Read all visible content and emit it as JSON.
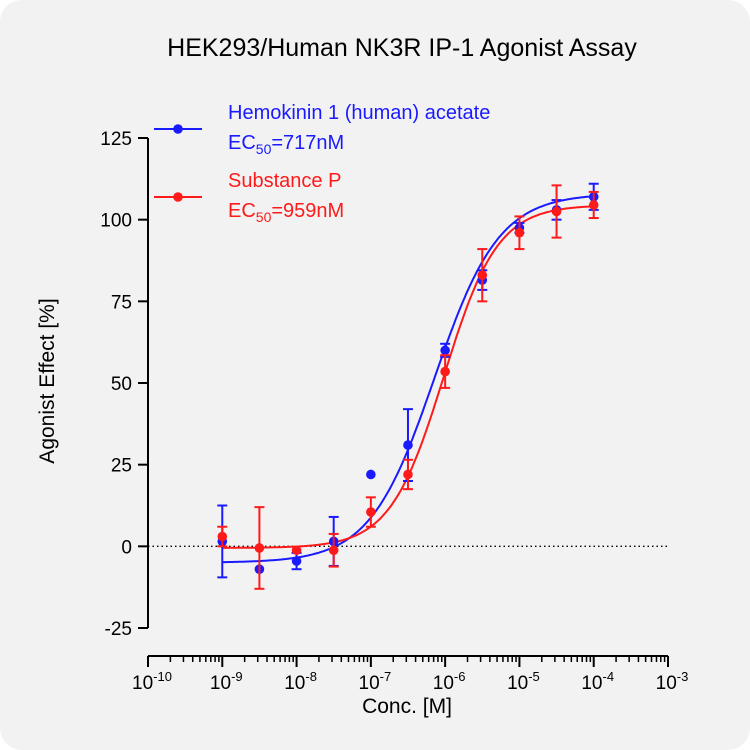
{
  "chart_data": {
    "type": "scatter",
    "title": "HEK293/Human NK3R IP-1 Agonist Assay",
    "xlabel": "Conc. [M]",
    "ylabel": "Agonist Effect [%]",
    "x_scale": "log",
    "xlim": [
      1e-10,
      0.001
    ],
    "ylim": [
      -25,
      125
    ],
    "y_ticks": [
      -25,
      0,
      25,
      50,
      75,
      100,
      125
    ],
    "x_major_ticks": [
      {
        "value": 1e-10,
        "base": "10",
        "exp": "-10"
      },
      {
        "value": 1e-09,
        "base": "10",
        "exp": "-9"
      },
      {
        "value": 1e-08,
        "base": "10",
        "exp": "-8"
      },
      {
        "value": 1e-07,
        "base": "10",
        "exp": "-7"
      },
      {
        "value": 1e-06,
        "base": "10",
        "exp": "-6"
      },
      {
        "value": 1e-05,
        "base": "10",
        "exp": "-5"
      },
      {
        "value": 0.0001,
        "base": "10",
        "exp": "-4"
      },
      {
        "value": 0.001,
        "base": "10",
        "exp": "-3"
      }
    ],
    "baseline": 0,
    "legend_position": "top-left",
    "series": [
      {
        "name": "Hemokinin 1 (human) acetate",
        "ec50_label": {
          "prefix": "EC",
          "sub": "50",
          "suffix": "=717nM"
        },
        "color": "#1a1aff",
        "points": [
          {
            "x": 1e-09,
            "y": 1.5,
            "err": 11
          },
          {
            "x": 3.16e-09,
            "y": -7,
            "err": 0
          },
          {
            "x": 1e-08,
            "y": -4.5,
            "err": 2.5
          },
          {
            "x": 3.16e-08,
            "y": 1.5,
            "err": 7.5
          },
          {
            "x": 1e-07,
            "y": 22,
            "err": 0
          },
          {
            "x": 3.16e-07,
            "y": 31,
            "err": 11
          },
          {
            "x": 1e-06,
            "y": 60,
            "err": 2
          },
          {
            "x": 3.16e-06,
            "y": 81.5,
            "err": 3
          },
          {
            "x": 1e-05,
            "y": 97.5,
            "err": 1.5
          },
          {
            "x": 3.16e-05,
            "y": 103,
            "err": 3
          },
          {
            "x": 0.0001,
            "y": 107,
            "err": 4
          }
        ],
        "fit": {
          "bottom": -5,
          "top": 108,
          "logEC50": -6.144,
          "hill": 1.0
        }
      },
      {
        "name": "Substance P",
        "ec50_label": {
          "prefix": "EC",
          "sub": "50",
          "suffix": "=959nM"
        },
        "color": "#ff1a1a",
        "points": [
          {
            "x": 1e-09,
            "y": 3,
            "err": 3
          },
          {
            "x": 3.16e-09,
            "y": -0.5,
            "err": 12.5
          },
          {
            "x": 1e-08,
            "y": -1.2,
            "err": 0
          },
          {
            "x": 3.16e-08,
            "y": -1.2,
            "err": 5
          },
          {
            "x": 1e-07,
            "y": 10.5,
            "err": 4.5
          },
          {
            "x": 3.16e-07,
            "y": 22,
            "err": 4.5
          },
          {
            "x": 1e-06,
            "y": 53.5,
            "err": 5
          },
          {
            "x": 3.16e-06,
            "y": 83,
            "err": 8
          },
          {
            "x": 1e-05,
            "y": 96,
            "err": 5
          },
          {
            "x": 3.16e-05,
            "y": 102.5,
            "err": 8
          },
          {
            "x": 0.0001,
            "y": 104.5,
            "err": 4
          }
        ],
        "fit": {
          "bottom": -0.5,
          "top": 104.5,
          "logEC50": -6.018,
          "hill": 1.2
        }
      }
    ]
  }
}
